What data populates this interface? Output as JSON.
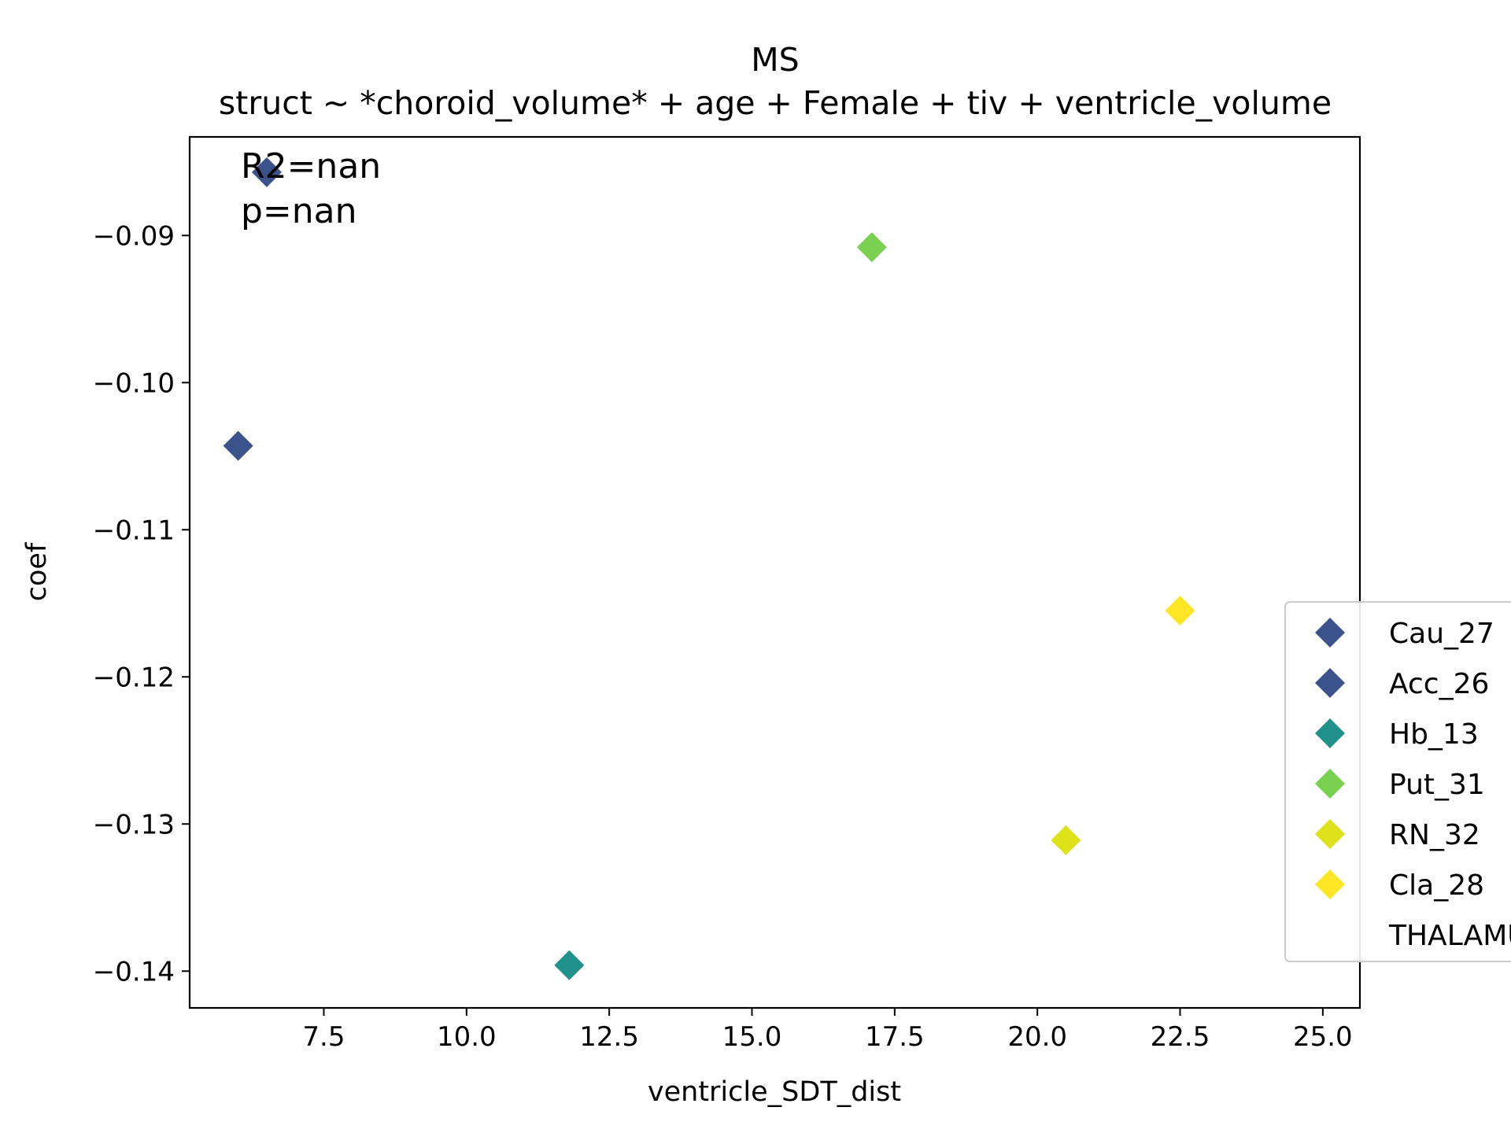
{
  "chart_data": {
    "type": "scatter",
    "title": "MS",
    "subtitle": "struct ~ *choroid_volume* + age + Female + tiv + ventricle_volume",
    "xlabel": "ventricle_SDT_dist",
    "ylabel": "coef",
    "xlim": [
      5.15,
      25.65
    ],
    "ylim": [
      -0.1425,
      -0.0833
    ],
    "xticks": [
      7.5,
      10.0,
      12.5,
      15.0,
      17.5,
      20.0,
      22.5,
      25.0
    ],
    "xtick_labels": [
      "7.5",
      "10.0",
      "12.5",
      "15.0",
      "17.5",
      "20.0",
      "22.5",
      "25.0"
    ],
    "yticks": [
      -0.09,
      -0.1,
      -0.11,
      -0.12,
      -0.13,
      -0.14
    ],
    "ytick_labels": [
      "−0.09",
      "−0.10",
      "−0.11",
      "−0.12",
      "−0.13",
      "−0.14"
    ],
    "grid": false,
    "marker": "diamond",
    "annotations": [
      "R2=nan",
      "p=nan"
    ],
    "legend_placement": "center-right, outside axes",
    "series": [
      {
        "name": "Cau_27",
        "color": "#3b528b",
        "x": [
          6.5
        ],
        "y": [
          -0.0857
        ]
      },
      {
        "name": "Acc_26",
        "color": "#3b528b",
        "x": [
          6.0
        ],
        "y": [
          -0.1043
        ]
      },
      {
        "name": "Hb_13",
        "color": "#21918c",
        "x": [
          11.8
        ],
        "y": [
          -0.1396
        ]
      },
      {
        "name": "Put_31",
        "color": "#7ad151",
        "x": [
          17.1
        ],
        "y": [
          -0.0908
        ]
      },
      {
        "name": "RN_32",
        "color": "#dde318",
        "x": [
          20.5
        ],
        "y": [
          -0.1311
        ]
      },
      {
        "name": "Cla_28",
        "color": "#fde725",
        "x": [
          22.5
        ],
        "y": [
          -0.1155
        ]
      },
      {
        "name": "THALAMUS",
        "color": null,
        "x": [],
        "y": []
      }
    ]
  }
}
